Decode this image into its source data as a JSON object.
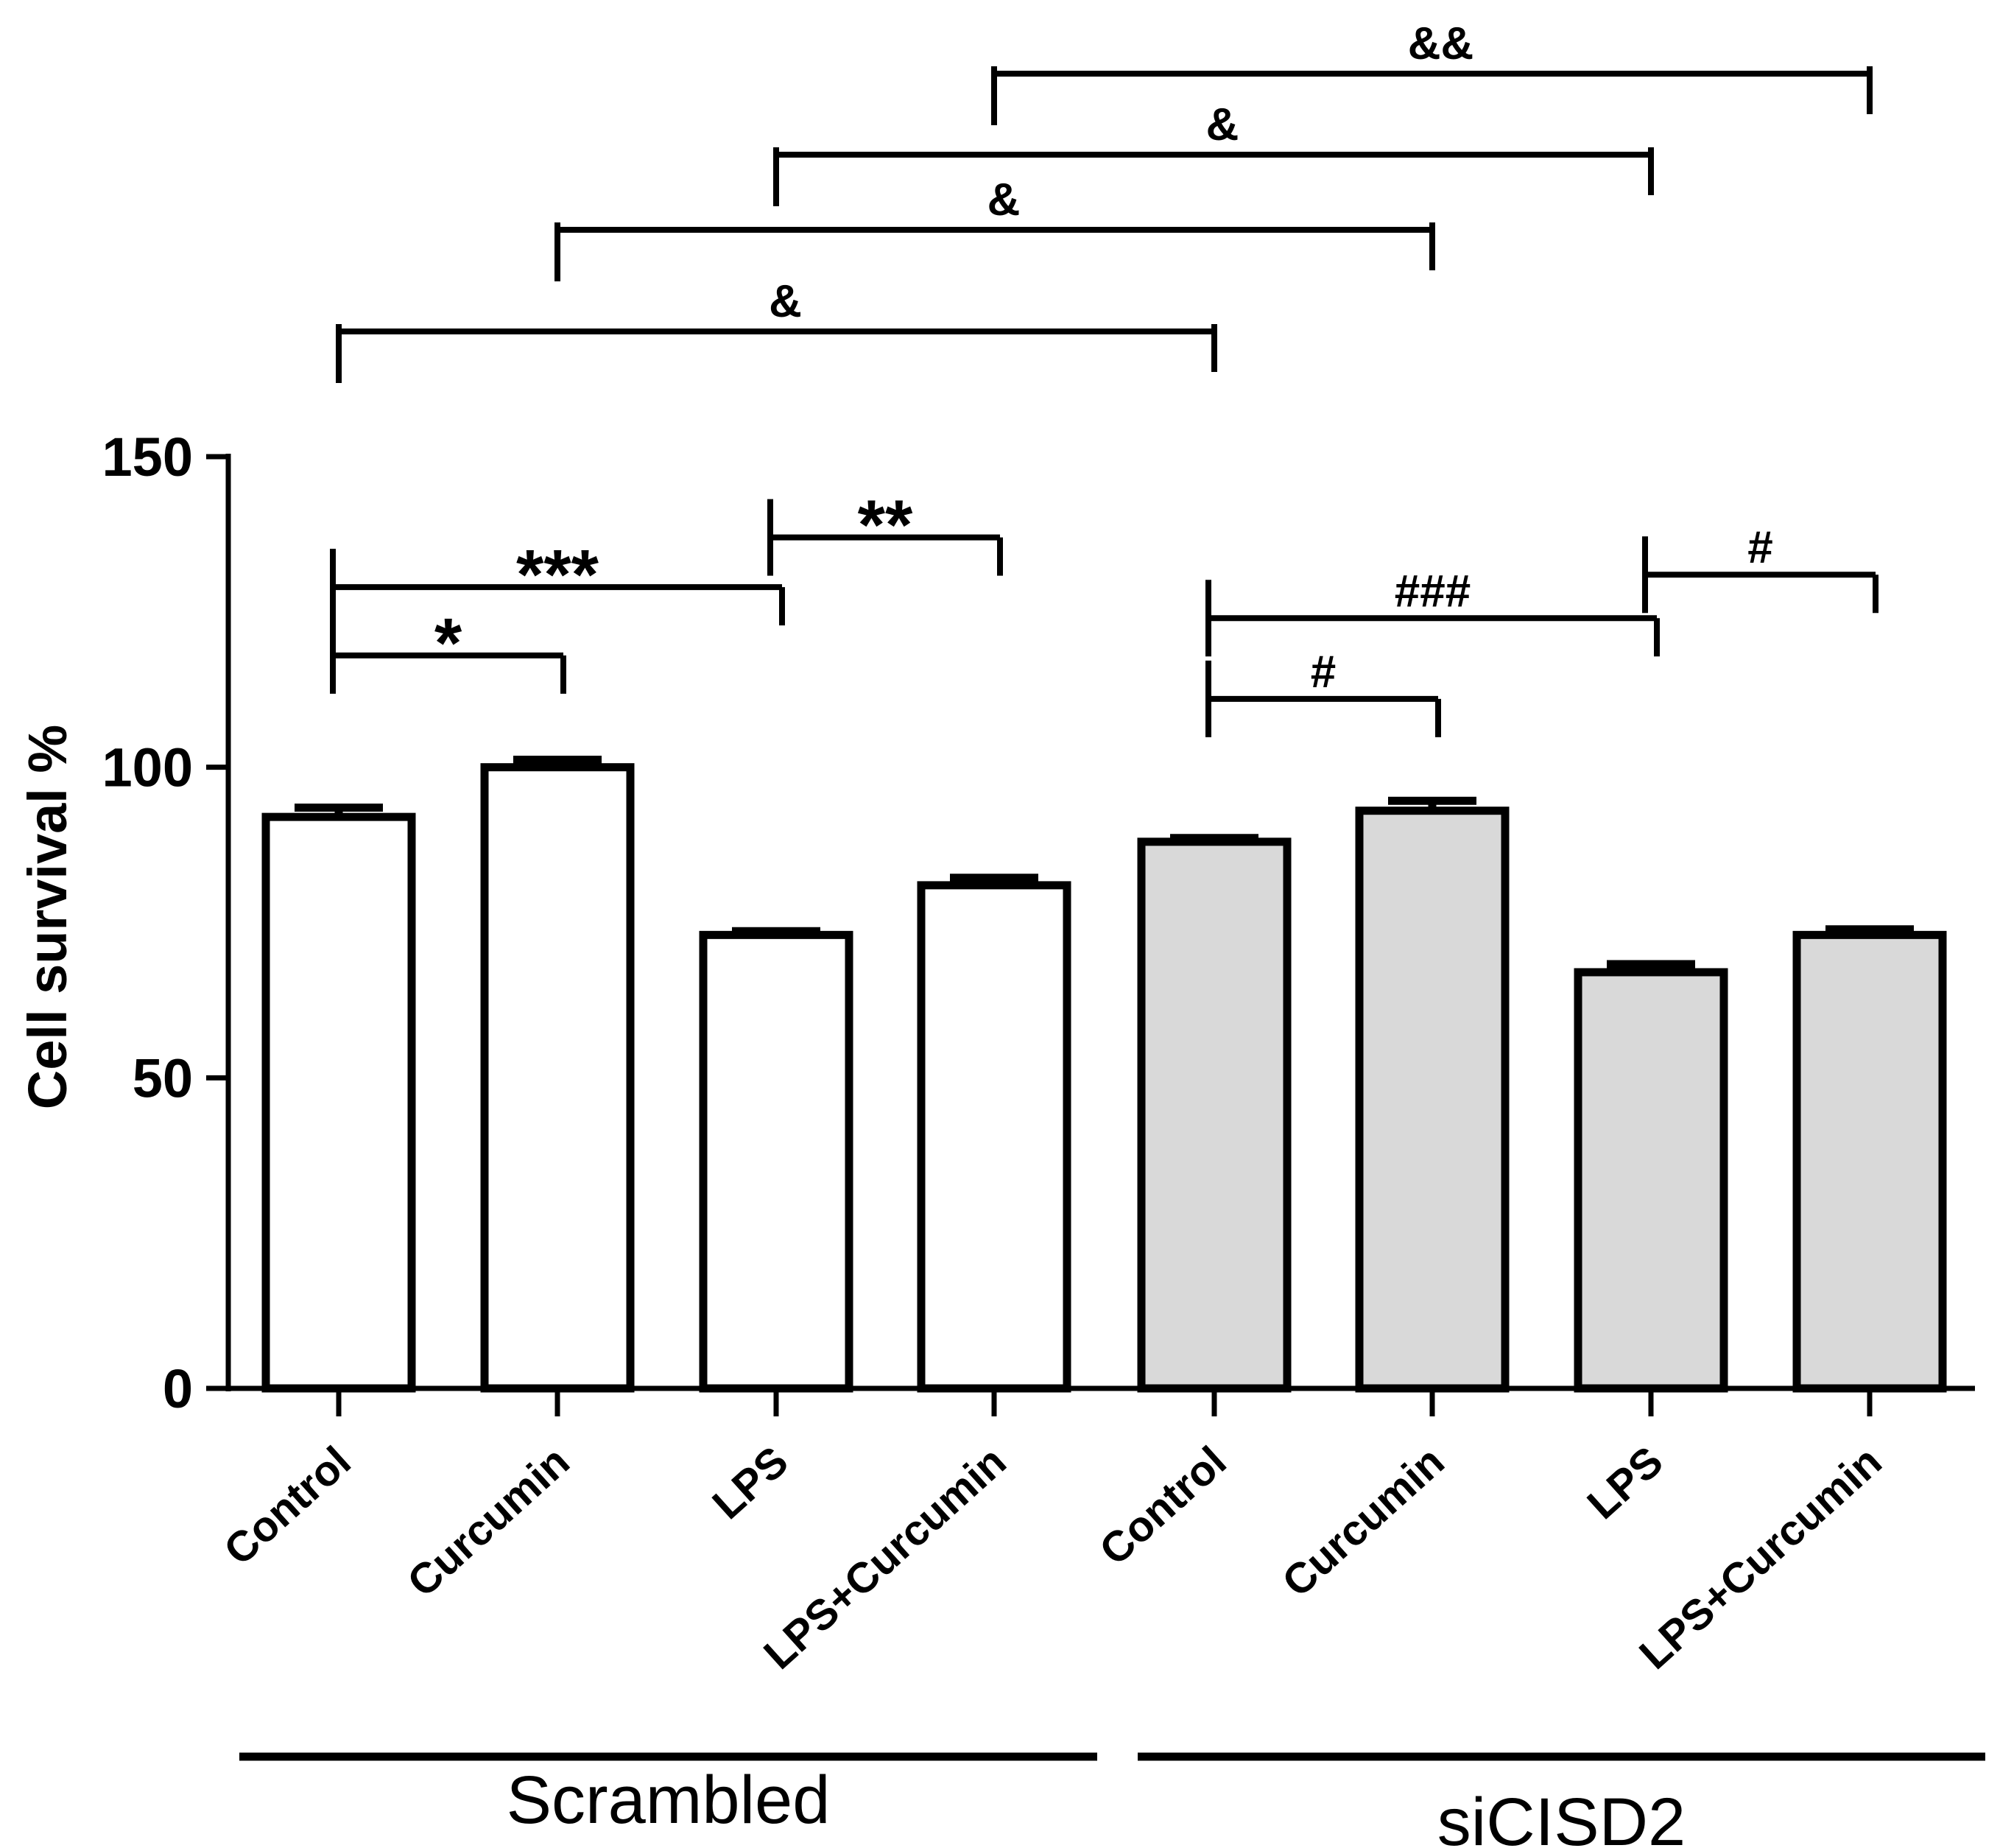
{
  "chart_data": {
    "type": "bar",
    "title": "",
    "xlabel": "",
    "ylabel": "Cell survival %",
    "ylim": [
      0,
      150
    ],
    "yticks": [
      0,
      50,
      100,
      150
    ],
    "grid": false,
    "categories": [
      "Control",
      "Curcumin",
      "LPS",
      "LPS+Curcumin",
      "Control",
      "Curcumin",
      "LPS",
      "LPS+Curcumin"
    ],
    "groups": [
      {
        "name": "Scrambled",
        "start": 0,
        "end": 3,
        "fill": "#ffffff"
      },
      {
        "name": "siCISD2",
        "start": 4,
        "end": 7,
        "fill": "#d9d9d9"
      }
    ],
    "values": [
      92,
      100,
      73,
      81,
      88,
      93,
      67,
      73
    ],
    "errors": [
      1.5,
      1.2,
      0.6,
      1.2,
      0.6,
      1.6,
      1.3,
      0.9
    ],
    "significance_inside": [
      {
        "from": 0,
        "to": 1,
        "y": 118,
        "label": "*"
      },
      {
        "from": 0,
        "to": 2,
        "y": 129,
        "label": "***"
      },
      {
        "from": 2,
        "to": 3,
        "y": 137,
        "label": "**"
      },
      {
        "from": 4,
        "to": 5,
        "y": 111,
        "label": "#"
      },
      {
        "from": 4,
        "to": 6,
        "y": 124,
        "label": "###"
      },
      {
        "from": 6,
        "to": 7,
        "y": 131,
        "label": "#"
      }
    ],
    "significance_top": [
      {
        "from": 0,
        "to": 4,
        "level": 0,
        "label": "&"
      },
      {
        "from": 1,
        "to": 5,
        "level": 1,
        "label": "&"
      },
      {
        "from": 2,
        "to": 6,
        "level": 2,
        "label": "&"
      },
      {
        "from": 3,
        "to": 7,
        "level": 3,
        "label": "&&"
      }
    ]
  }
}
